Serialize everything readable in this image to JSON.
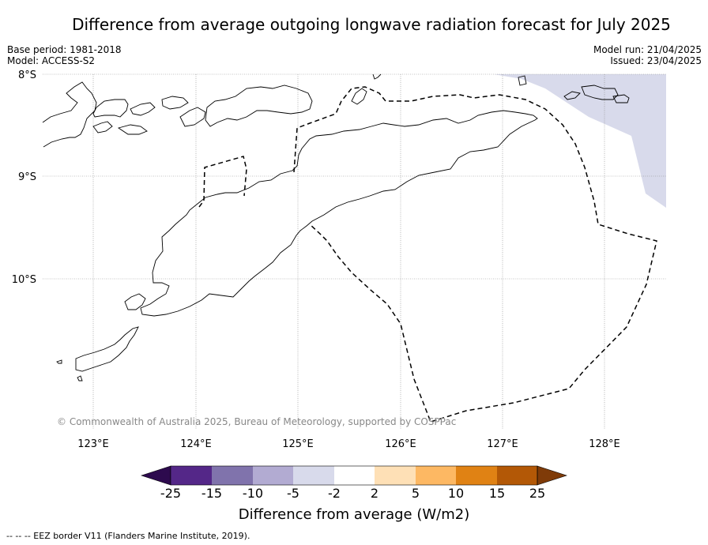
{
  "title": "Difference from average outgoing longwave radiation forecast for July 2025",
  "meta_left": {
    "base_period": "Base period: 1981-2018",
    "model": "Model: ACCESS-S2"
  },
  "meta_right": {
    "model_run": "Model run: 21/04/2025",
    "issued": "Issued: 23/04/2025"
  },
  "copyright": "© Commonwealth of Australia 2025, Bureau of Meteorology, supported by COSPPac",
  "lat_labels": [
    "8°S",
    "9°S",
    "10°S"
  ],
  "lon_labels": [
    "123°E",
    "124°E",
    "125°E",
    "126°E",
    "127°E",
    "128°E"
  ],
  "colorbar": {
    "title": "Difference from average (W/m2)",
    "ticks": [
      "-25",
      "-15",
      "-10",
      "-5",
      "-2",
      "2",
      "5",
      "10",
      "15",
      "25"
    ],
    "colors": [
      "#2d0a4e",
      "#542788",
      "#8073ac",
      "#b2abd2",
      "#d8daeb",
      "#ffffff",
      "#fee0b6",
      "#fdb863",
      "#e08214",
      "#b35806",
      "#7f3b08"
    ]
  },
  "footnote": "--  --  -- EEZ border V11 (Flanders Marine Institute, 2019).",
  "colors": {
    "anomaly_fill": "#d8daeb",
    "grid": "#888888",
    "coast": "#000000"
  }
}
